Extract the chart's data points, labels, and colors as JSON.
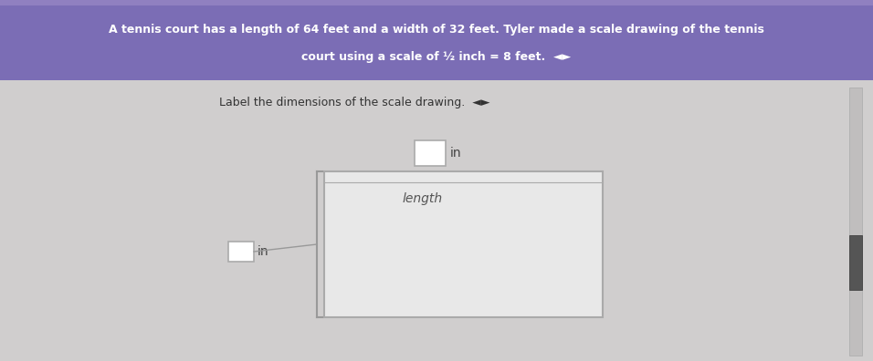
{
  "title_line1": "A tennis court has a length of 64 feet and a width of 32 feet. Tyler made a scale drawing of the tennis",
  "title_line2": "court using a scale of ½ inch = 8 feet.  ◄►",
  "title_bg_color": "#7b6db5",
  "title_text_color": "#ffffff",
  "body_bg_color": "#d0cece",
  "instruction_text": "Label the dimensions of the scale drawing.  ◄►",
  "court_label": "length",
  "top_label": "in",
  "left_label": "in",
  "court_fill": "#e8e8e8",
  "court_edge": "#aaaaaa",
  "box_fill": "#ffffff",
  "box_edge": "#aaaaaa",
  "scroll_bg": "#c8c8c8",
  "scroll_thumb": "#555555"
}
